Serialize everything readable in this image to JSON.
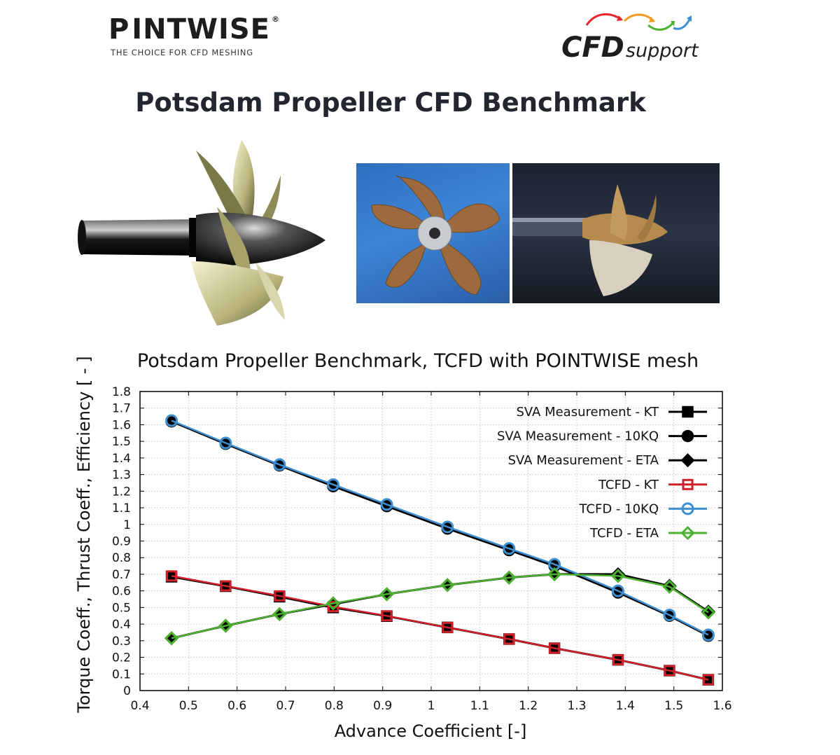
{
  "logos": {
    "pointwise": {
      "word_left": "P",
      "word_right": "INTWISE",
      "registered": "®",
      "tagline": "THE CHOICE FOR CFD MESHING"
    },
    "cfd_support": {
      "main": "CFD",
      "sub": "support"
    }
  },
  "page_title": "Potsdam Propeller CFD Benchmark",
  "images": [
    {
      "name": "propeller-render"
    },
    {
      "name": "propeller-photo-front"
    },
    {
      "name": "propeller-photo-tunnel"
    }
  ],
  "chart_data": {
    "type": "line",
    "title": "Potsdam Propeller Benchmark, TCFD with POINTWISE mesh",
    "xlabel": "Advance Coefficient [-]",
    "ylabel": "Torque Coeff., Thrust Coeff., Efficiency [ - ]",
    "xlim": [
      0.4,
      1.6
    ],
    "ylim": [
      0,
      1.8
    ],
    "xticks": [
      0.4,
      0.5,
      0.6,
      0.7,
      0.8,
      0.9,
      1,
      1.1,
      1.2,
      1.3,
      1.4,
      1.5,
      1.6
    ],
    "xtick_labels": [
      "0.4",
      "0.5",
      "0.6",
      "0.7",
      "0.8",
      "0.9",
      "1",
      "1.1",
      "1.2",
      "1.3",
      "1.4",
      "1.5",
      "1.6"
    ],
    "yticks": [
      0,
      0.1,
      0.2,
      0.3,
      0.4,
      0.5,
      0.6,
      0.7,
      0.8,
      0.9,
      1,
      1.1,
      1.2,
      1.3,
      1.4,
      1.5,
      1.6,
      1.7,
      1.8
    ],
    "ytick_labels": [
      "0",
      "0.1",
      "0.2",
      "0.3",
      "0.4",
      "0.5",
      "0.6",
      "0.7",
      "0.8",
      "0.9",
      "1",
      "1.1",
      "1.2",
      "1.3",
      "1.4",
      "1.5",
      "1.6",
      "1.7",
      "1.8"
    ],
    "grid": true,
    "legend_position": "top-right",
    "x": [
      0.465,
      0.5765,
      0.6875,
      0.798,
      0.9085,
      1.0335,
      1.1605,
      1.254,
      1.385,
      1.491,
      1.571
    ],
    "series": [
      {
        "name": "SVA Measurement - KT",
        "marker": "filled-square",
        "color": "#000000",
        "values": [
          0.685,
          0.628,
          0.565,
          0.5,
          0.448,
          0.38,
          0.31,
          0.255,
          0.185,
          0.12,
          0.065
        ]
      },
      {
        "name": "SVA Measurement - 10KQ",
        "marker": "filled-circle",
        "color": "#000000",
        "values": [
          1.62,
          1.485,
          1.355,
          1.23,
          1.11,
          0.975,
          0.845,
          0.75,
          0.59,
          0.45,
          0.33
        ]
      },
      {
        "name": "SVA Measurement - ETA",
        "marker": "filled-diamond",
        "color": "#000000",
        "values": [
          0.315,
          0.39,
          0.46,
          0.52,
          0.58,
          0.635,
          0.68,
          0.7,
          0.7,
          0.63,
          0.475
        ]
      },
      {
        "name": "TCFD - KT",
        "marker": "open-square",
        "color": "#d0202a",
        "values": [
          0.69,
          0.63,
          0.57,
          0.505,
          0.45,
          0.38,
          0.31,
          0.255,
          0.185,
          0.12,
          0.065
        ]
      },
      {
        "name": "TCFD - 10KQ",
        "marker": "open-circle",
        "color": "#3d8fd1",
        "values": [
          1.625,
          1.49,
          1.36,
          1.24,
          1.12,
          0.985,
          0.855,
          0.76,
          0.6,
          0.455,
          0.335
        ]
      },
      {
        "name": "TCFD - ETA",
        "marker": "open-diamond",
        "color": "#4cb030",
        "values": [
          0.315,
          0.39,
          0.46,
          0.525,
          0.58,
          0.635,
          0.68,
          0.7,
          0.69,
          0.625,
          0.47
        ]
      }
    ]
  }
}
